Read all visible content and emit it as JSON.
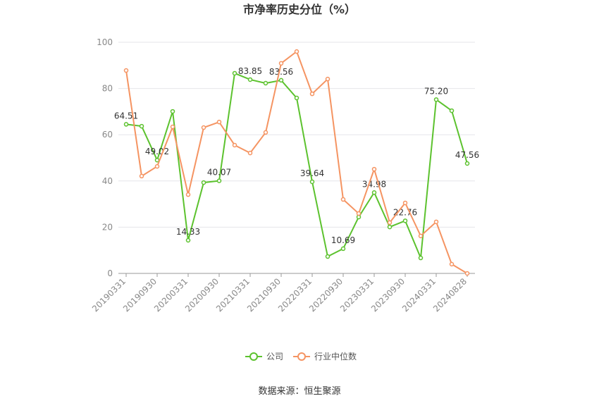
{
  "chart_data": {
    "type": "line",
    "title": "市净率历史分位（%）",
    "categories": [
      "20190331",
      null,
      "20190930",
      null,
      "20200331",
      null,
      "20200930",
      null,
      "20210331",
      null,
      "20210930",
      null,
      "20220331",
      null,
      "20220930",
      null,
      "20230331",
      null,
      "20230930",
      null,
      "20240331",
      null,
      "20240828"
    ],
    "series": [
      {
        "name": "公司",
        "color": "#5cc22e",
        "values": [
          64.51,
          63.7,
          49.02,
          70.1,
          14.33,
          39.3,
          40.07,
          86.6,
          83.85,
          82.3,
          83.56,
          75.9,
          39.64,
          7.3,
          10.69,
          24.4,
          34.98,
          20.1,
          22.76,
          6.7,
          75.2,
          70.4,
          47.56
        ],
        "value_labels": [
          "64.51",
          null,
          "49.02",
          null,
          "14.33",
          null,
          "40.07",
          null,
          "83.85",
          null,
          "83.56",
          null,
          "39.64",
          null,
          "10.69",
          null,
          "34.98",
          null,
          "22.76",
          null,
          "75.20",
          null,
          "47.56"
        ]
      },
      {
        "name": "行业中位数",
        "color": "#f59462",
        "values": [
          87.8,
          42.1,
          46.3,
          63.4,
          34.1,
          63.1,
          65.5,
          55.5,
          52.1,
          61.0,
          90.9,
          96.0,
          77.7,
          84.1,
          32.0,
          25.9,
          45.1,
          22.0,
          30.5,
          16.2,
          22.3,
          4.0,
          0
        ]
      }
    ],
    "ylim": [
      0,
      100
    ],
    "yticks": [
      0,
      20,
      40,
      60,
      80,
      100
    ],
    "grid": true,
    "source": "数据来源：恒生聚源"
  }
}
